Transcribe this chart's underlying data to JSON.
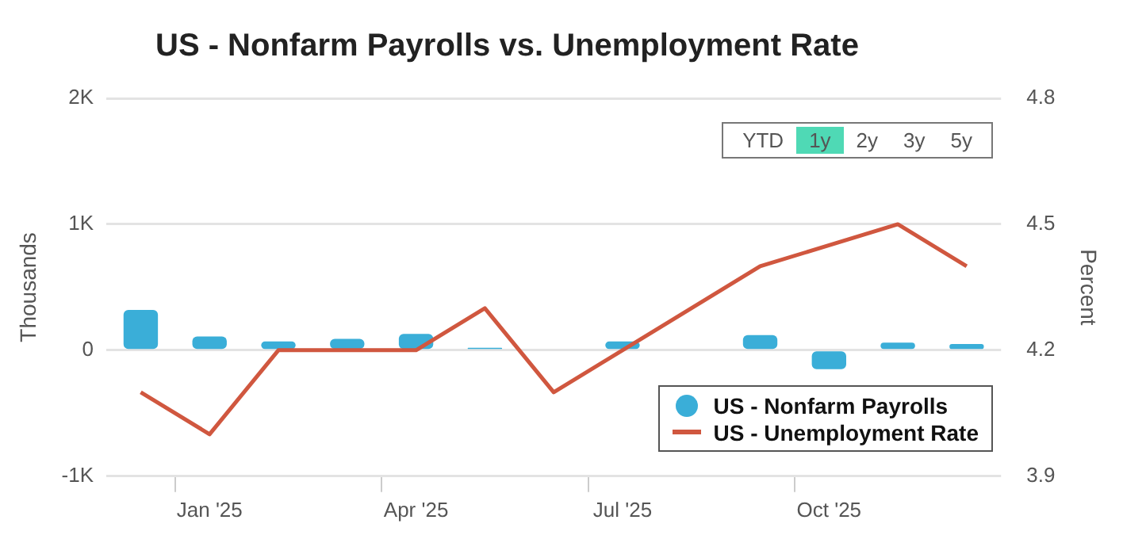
{
  "chart_data": {
    "type": "bar",
    "title": "US - Nonfarm Payrolls vs. Unemployment Rate",
    "categories": [
      null,
      "Jan '25",
      null,
      null,
      "Apr '25",
      null,
      null,
      "Jul '25",
      null,
      null,
      "Oct '25",
      null,
      null
    ],
    "series": [
      {
        "name": "US - Nonfarm Payrolls",
        "color": "#3aaed8",
        "values": [
          320,
          110,
          70,
          90,
          130,
          20,
          null,
          70,
          null,
          120,
          -150,
          60,
          50
        ]
      },
      {
        "name": "US - Unemployment Rate",
        "type": "line",
        "axis": "y2",
        "color": "#d0573f",
        "values": [
          4.1,
          4.0,
          4.2,
          4.2,
          4.2,
          4.3,
          4.1,
          4.2,
          4.3,
          4.4,
          null,
          4.5,
          4.4
        ]
      }
    ],
    "ylabel": "Thousands",
    "y2label": "Percent",
    "ylim": [
      -1000,
      2000
    ],
    "yticks": [
      {
        "value": -1000,
        "label": "-1K"
      },
      0,
      {
        "value": 1000,
        "label": "1K"
      },
      {
        "value": 2000,
        "label": "2K"
      }
    ],
    "y2lim": [
      3.9,
      4.8
    ],
    "y2ticks": [
      3.9,
      4.2,
      4.5,
      4.8
    ],
    "grid": "y",
    "legend": "bottom right",
    "marker": "none",
    "line_style": "solid",
    "annotations": [
      "YTD",
      "1y",
      "2y",
      "3y",
      "5y"
    ]
  }
}
